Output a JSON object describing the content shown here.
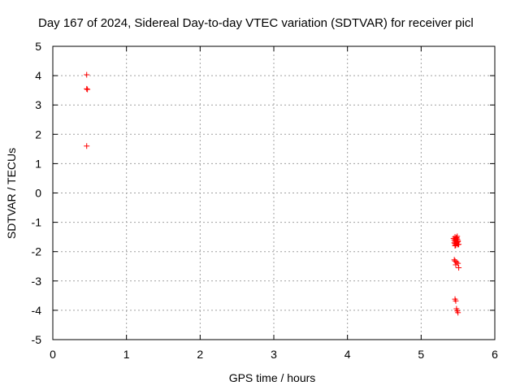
{
  "chart_data": {
    "type": "scatter",
    "title": "Day 167 of 2024, Sidereal Day-to-day VTEC variation (SDTVAR) for receiver picl",
    "xlabel": "GPS time / hours",
    "ylabel": "SDTVAR / TECUs",
    "xlim": [
      0,
      6
    ],
    "ylim": [
      -5,
      5
    ],
    "xticks": [
      0,
      1,
      2,
      3,
      4,
      5,
      6
    ],
    "yticks": [
      -5,
      -4,
      -3,
      -2,
      -1,
      0,
      1,
      2,
      3,
      4,
      5
    ],
    "grid": true,
    "marker": "+",
    "colors": {
      "points": "#ff0000",
      "grid": "#a0a0a0",
      "axes": "#000000"
    },
    "series": [
      {
        "name": "picl",
        "x": [
          0.46,
          0.46,
          0.47,
          0.46,
          5.44,
          5.45,
          5.46,
          5.47,
          5.48,
          5.49,
          5.5,
          5.45,
          5.46,
          5.48,
          5.49,
          5.51,
          5.47,
          5.46,
          5.49,
          5.5,
          5.46,
          5.48,
          5.5,
          5.45,
          5.46,
          5.48,
          5.5,
          5.51,
          5.47,
          5.46,
          5.47,
          5.48,
          5.49,
          5.5
        ],
        "y": [
          4.03,
          3.55,
          3.53,
          1.6,
          -1.55,
          -1.6,
          -1.5,
          -1.58,
          -1.52,
          -1.48,
          -1.62,
          -1.7,
          -1.65,
          -1.72,
          -1.68,
          -1.75,
          -1.78,
          -1.8,
          -1.57,
          -1.66,
          -1.73,
          -1.53,
          -1.76,
          -2.28,
          -2.32,
          -2.36,
          -2.4,
          -2.55,
          -2.45,
          -3.62,
          -3.68,
          -3.95,
          -4.02,
          -4.08
        ]
      }
    ]
  }
}
